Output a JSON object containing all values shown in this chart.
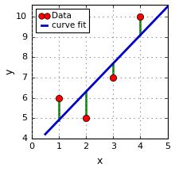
{
  "x_data": [
    1,
    2,
    3,
    4
  ],
  "y_data": [
    6,
    5,
    7,
    10
  ],
  "x_line_start": 0.5,
  "x_line_end": 5.1,
  "line_color": "#0000cc",
  "data_color": "red",
  "residual_color": "green",
  "xlabel": "x",
  "ylabel": "y",
  "xlim": [
    0,
    5
  ],
  "ylim": [
    4,
    10.6
  ],
  "yticks": [
    4,
    5,
    6,
    7,
    8,
    9,
    10
  ],
  "xticks": [
    0,
    1,
    2,
    3,
    4,
    5
  ],
  "legend_data_label": "Data",
  "legend_fit_label": "curve fit",
  "marker_size": 6,
  "line_width": 2,
  "residual_linewidth": 1.8
}
